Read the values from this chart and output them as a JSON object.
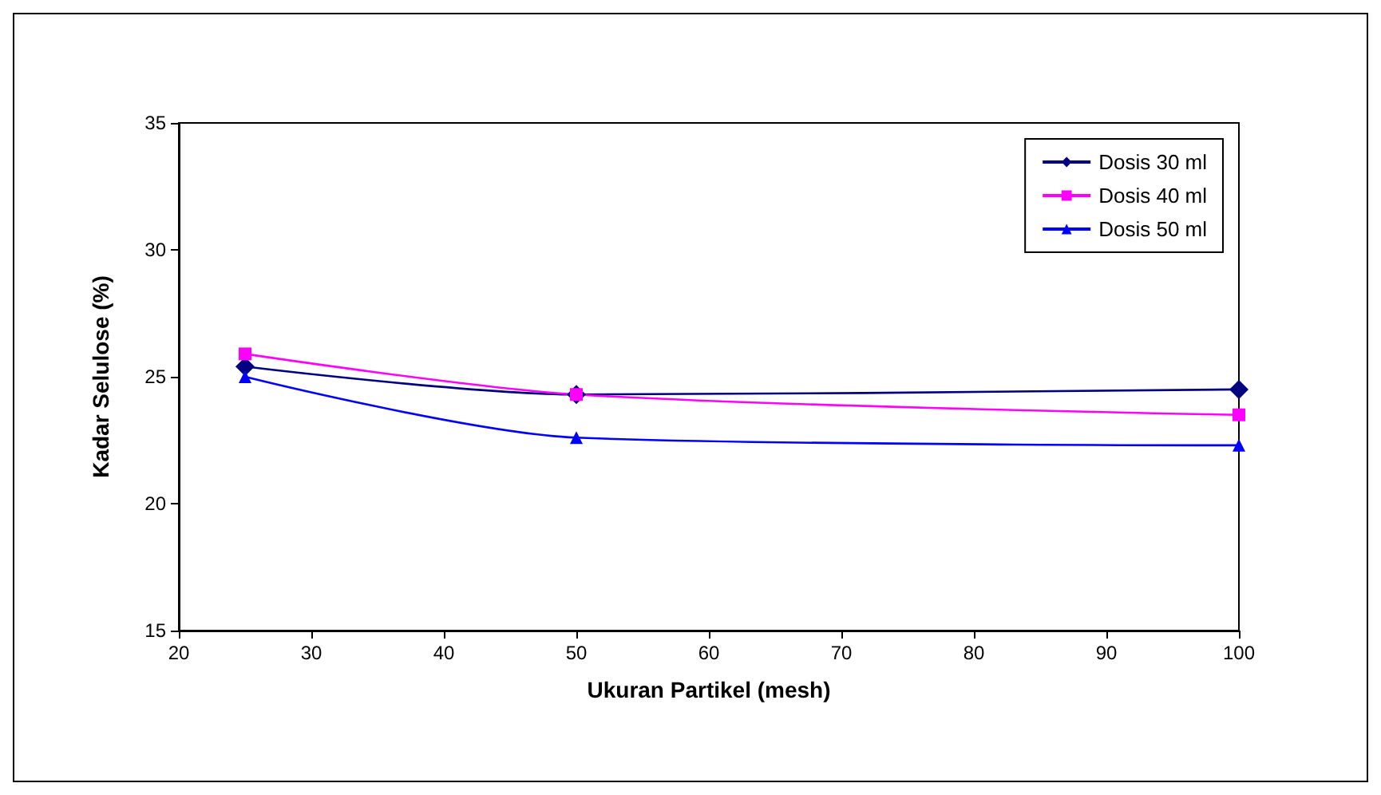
{
  "chart_data": {
    "type": "line",
    "xlabel": "Ukuran Partikel (mesh)",
    "ylabel": "Kadar Selulose (%)",
    "x": [
      25,
      50,
      100
    ],
    "series": [
      {
        "name": "Dosis 30 ml",
        "color": "#000080",
        "marker": "diamond",
        "values": [
          25.4,
          24.3,
          24.5
        ]
      },
      {
        "name": "Dosis 40 ml",
        "color": "#ff00ff",
        "marker": "square",
        "values": [
          25.9,
          24.3,
          23.5
        ]
      },
      {
        "name": "Dosis 50 ml",
        "color": "#0000ff",
        "marker": "triangle",
        "values": [
          25.0,
          22.6,
          22.3
        ]
      }
    ],
    "xlim": [
      20,
      100
    ],
    "xticks": [
      20,
      30,
      40,
      50,
      60,
      70,
      80,
      90,
      100
    ],
    "ylim": [
      15,
      35
    ],
    "yticks": [
      15,
      20,
      25,
      30,
      35
    ],
    "grid": false,
    "legend": "top right",
    "line_style": "solid"
  }
}
